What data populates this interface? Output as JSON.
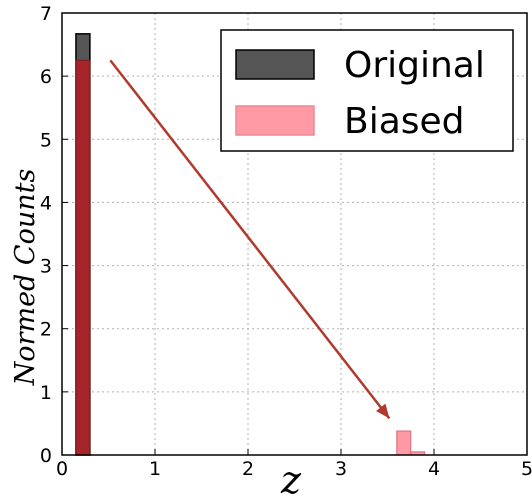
{
  "chart_data": {
    "type": "bar",
    "title": "",
    "xlabel": "z",
    "ylabel": "Normed Counts",
    "xlim": [
      0,
      5
    ],
    "ylim": [
      0,
      7
    ],
    "xticks": [
      "0",
      "1",
      "2",
      "3",
      "4",
      "5"
    ],
    "yticks": [
      "0",
      "1",
      "2",
      "3",
      "4",
      "5",
      "6",
      "7"
    ],
    "grid": true,
    "legend_position": "top-right",
    "bin_width": 0.15,
    "series": [
      {
        "name": "Original",
        "color": "#555555",
        "bins": [
          {
            "x_start": 0.15,
            "value": 6.67
          }
        ]
      },
      {
        "name": "Biased",
        "color": "#ff9aa5",
        "bins": [
          {
            "x_start": 0.15,
            "value": 6.25
          },
          {
            "x_start": 3.6,
            "value": 0.38
          },
          {
            "x_start": 3.75,
            "value": 0.05
          }
        ]
      }
    ],
    "overlap_color": "#a52528",
    "annotation": {
      "type": "arrow",
      "color": "#b03a2e",
      "from": [
        0.52,
        6.25
      ],
      "to": [
        3.52,
        0.58
      ]
    }
  }
}
